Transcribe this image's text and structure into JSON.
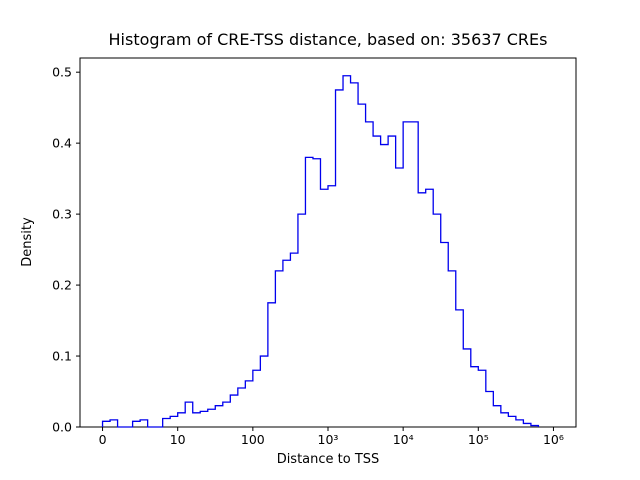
{
  "chart_data": {
    "type": "bar",
    "subtype": "step-histogram",
    "title": "Histogram of CRE-TSS distance, based on: 35637 CREs",
    "xlabel": "Distance to TSS",
    "ylabel": "Density",
    "x_scale": "symlog",
    "x_transform": "u = x/10 for x <= 10; u = log10(x) for x >= 10",
    "line_color": "#0000ee",
    "frame_color": "#000000",
    "xlim_units": [
      -0.3,
      6.3
    ],
    "ylim": [
      0,
      0.52
    ],
    "x_ticks": [
      {
        "u": 0,
        "label": "0"
      },
      {
        "u": 1,
        "label": "10"
      },
      {
        "u": 2,
        "label": "100"
      },
      {
        "u": 3,
        "label": "10³"
      },
      {
        "u": 4,
        "label": "10⁴"
      },
      {
        "u": 5,
        "label": "10⁵"
      },
      {
        "u": 6,
        "label": "10⁶"
      }
    ],
    "y_ticks": [
      {
        "v": 0.0,
        "label": "0.0"
      },
      {
        "v": 0.1,
        "label": "0.1"
      },
      {
        "v": 0.2,
        "label": "0.2"
      },
      {
        "v": 0.3,
        "label": "0.3"
      },
      {
        "v": 0.4,
        "label": "0.4"
      },
      {
        "v": 0.5,
        "label": "0.5"
      }
    ],
    "bin_edges_units": [
      0.0,
      0.1,
      0.2,
      0.3,
      0.4,
      0.5,
      0.6,
      0.7,
      0.8,
      0.9,
      1.0,
      1.1,
      1.2,
      1.3,
      1.4,
      1.5,
      1.6,
      1.7,
      1.8,
      1.9,
      2.0,
      2.1,
      2.2,
      2.3,
      2.4,
      2.5,
      2.6,
      2.7,
      2.8,
      2.9,
      3.0,
      3.1,
      3.2,
      3.3,
      3.4,
      3.5,
      3.6,
      3.7,
      3.8,
      3.9,
      4.0,
      4.1,
      4.2,
      4.3,
      4.4,
      4.5,
      4.6,
      4.7,
      4.8,
      4.9,
      5.0,
      5.1,
      5.2,
      5.3,
      5.4,
      5.5,
      5.6,
      5.7,
      5.8
    ],
    "densities": [
      0.008,
      0.01,
      0.0,
      0.0,
      0.008,
      0.01,
      0.0,
      0.0,
      0.012,
      0.015,
      0.02,
      0.035,
      0.02,
      0.022,
      0.025,
      0.03,
      0.035,
      0.045,
      0.055,
      0.065,
      0.08,
      0.1,
      0.175,
      0.22,
      0.235,
      0.245,
      0.3,
      0.38,
      0.378,
      0.335,
      0.34,
      0.475,
      0.495,
      0.485,
      0.455,
      0.43,
      0.41,
      0.398,
      0.41,
      0.365,
      0.43,
      0.43,
      0.33,
      0.335,
      0.3,
      0.26,
      0.22,
      0.165,
      0.11,
      0.085,
      0.08,
      0.05,
      0.03,
      0.02,
      0.015,
      0.01,
      0.005,
      0.002
    ]
  }
}
